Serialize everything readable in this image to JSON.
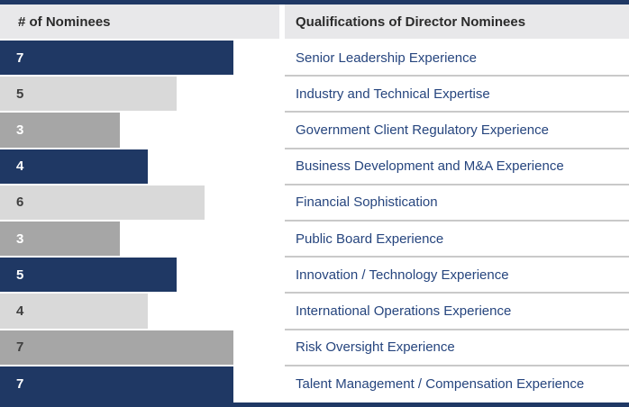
{
  "header": {
    "nominees_label": "# of Nominees",
    "qualifications_label": "Qualifications of Director Nominees"
  },
  "chart_data": {
    "type": "bar",
    "orientation": "horizontal",
    "title": "Qualifications of Director Nominees",
    "value_axis_label": "# of Nominees",
    "categories": [
      "Senior Leadership Experience",
      "Industry and Technical Expertise",
      "Government Client Regulatory Experience",
      "Business Development and M&A Experience",
      "Financial Sophistication",
      "Public Board Experience",
      "Innovation / Technology Experience",
      "International Operations Experience",
      "Risk Oversight Experience",
      "Talent Management / Compensation Experience"
    ],
    "values": [
      7,
      5,
      3,
      4,
      6,
      3,
      5,
      4,
      7,
      7
    ],
    "value_range": [
      0,
      7
    ],
    "bar_styles": [
      "navy",
      "light_gray",
      "medium_gray",
      "navy",
      "light_gray",
      "medium_gray",
      "navy",
      "light_gray",
      "medium_gray",
      "navy"
    ],
    "value_label_styles": [
      "white",
      "dark",
      "white",
      "white",
      "dark",
      "white",
      "white",
      "dark",
      "dark",
      "white"
    ],
    "legend": "none",
    "grid": "off"
  },
  "colors": {
    "navy": "#1F3864",
    "medium_gray": "#A6A6A6",
    "light_gray": "#D9D9D9",
    "header_bg": "#E8E8EA",
    "row_separator": "#C9C9C9",
    "label_text": "#26457E",
    "header_text": "#2B2B2B",
    "dark_value_text": "#3F3F3F",
    "white_value_text": "#FFFFFF"
  }
}
